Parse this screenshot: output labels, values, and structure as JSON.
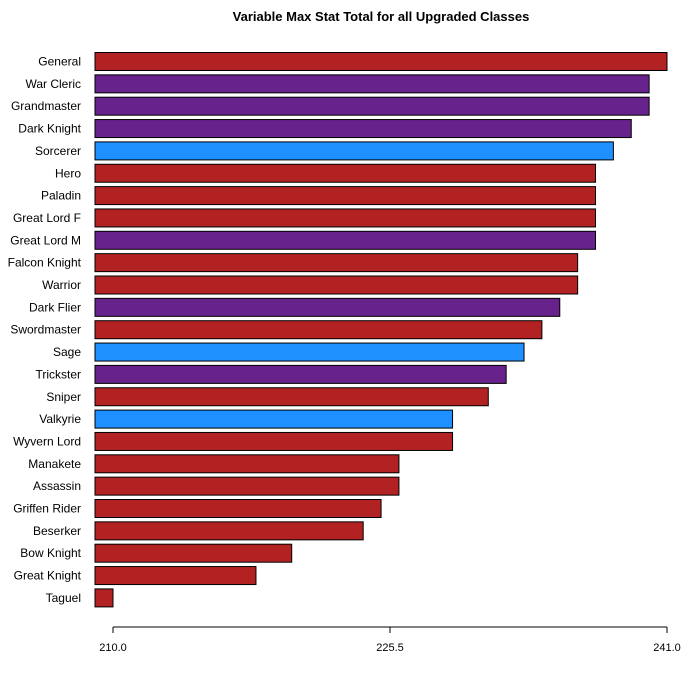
{
  "chart_data": {
    "type": "bar",
    "orientation": "horizontal",
    "title": "Variable Max Stat Total for all Upgraded Classes",
    "xlabel": "",
    "ylabel": "",
    "xlim": [
      210,
      241
    ],
    "ticks": [
      {
        "value": 210,
        "label": "210.0"
      },
      {
        "value": 225.5,
        "label": "225.5"
      },
      {
        "value": 241,
        "label": "241.0"
      }
    ],
    "colors": {
      "red": "#b22222",
      "purple": "#68228b",
      "blue": "#1e90ff"
    },
    "bars": [
      {
        "category": "General",
        "value": 241,
        "color": "red"
      },
      {
        "category": "War Cleric",
        "value": 240,
        "color": "purple"
      },
      {
        "category": "Grandmaster",
        "value": 240,
        "color": "purple"
      },
      {
        "category": "Dark Knight",
        "value": 239,
        "color": "purple"
      },
      {
        "category": "Sorcerer",
        "value": 238,
        "color": "blue"
      },
      {
        "category": "Hero",
        "value": 237,
        "color": "red"
      },
      {
        "category": "Paladin",
        "value": 237,
        "color": "red"
      },
      {
        "category": "Great Lord F",
        "value": 237,
        "color": "red"
      },
      {
        "category": "Great Lord M",
        "value": 237,
        "color": "purple"
      },
      {
        "category": "Falcon Knight",
        "value": 236,
        "color": "red"
      },
      {
        "category": "Warrior",
        "value": 236,
        "color": "red"
      },
      {
        "category": "Dark Flier",
        "value": 235,
        "color": "purple"
      },
      {
        "category": "Swordmaster",
        "value": 234,
        "color": "red"
      },
      {
        "category": "Sage",
        "value": 233,
        "color": "blue"
      },
      {
        "category": "Trickster",
        "value": 232,
        "color": "purple"
      },
      {
        "category": "Sniper",
        "value": 231,
        "color": "red"
      },
      {
        "category": "Valkyrie",
        "value": 229,
        "color": "blue"
      },
      {
        "category": "Wyvern Lord",
        "value": 229,
        "color": "red"
      },
      {
        "category": "Manakete",
        "value": 226,
        "color": "red"
      },
      {
        "category": "Assassin",
        "value": 226,
        "color": "red"
      },
      {
        "category": "Griffen Rider",
        "value": 225,
        "color": "red"
      },
      {
        "category": "Beserker",
        "value": 224,
        "color": "red"
      },
      {
        "category": "Bow Knight",
        "value": 220,
        "color": "red"
      },
      {
        "category": "Great Knight",
        "value": 218,
        "color": "red"
      },
      {
        "category": "Taguel",
        "value": 210,
        "color": "red"
      }
    ]
  }
}
